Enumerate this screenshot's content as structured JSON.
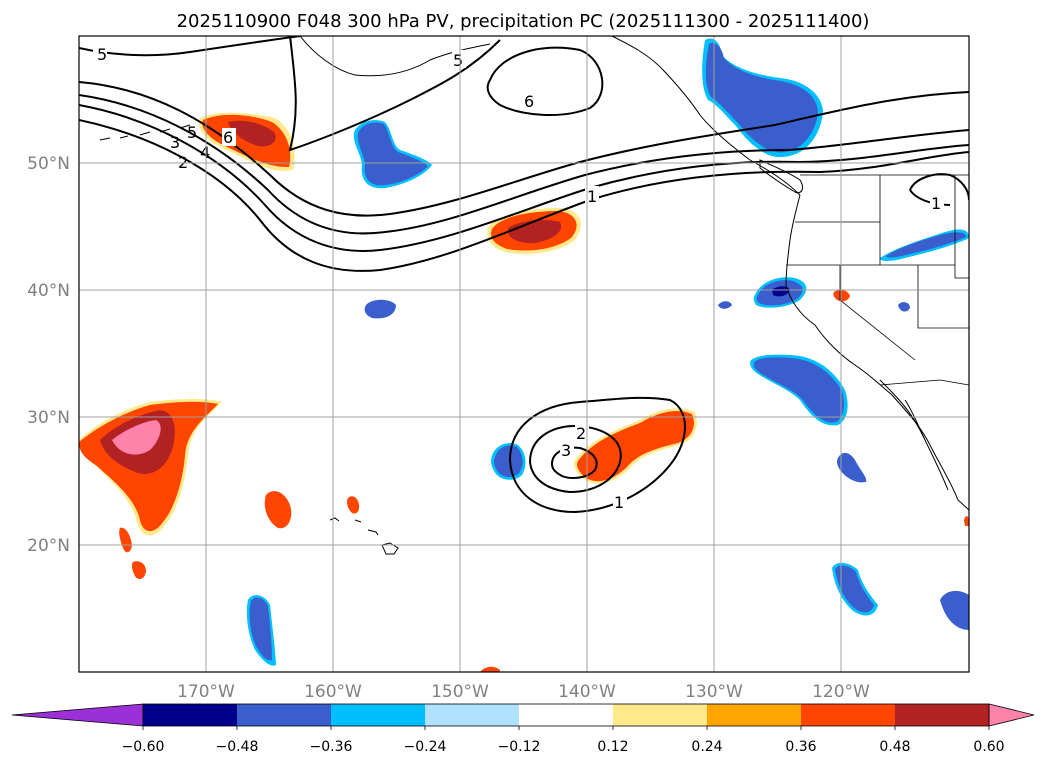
{
  "title": "2025110900 F048 300 hPa PV, precipitation PC (2025111300 - 2025111400)",
  "colors": {
    "ocean": "#ffffff",
    "grid": "#a0a0a0",
    "coast": "#000000",
    "contour": "#000000",
    "labels": "#808080"
  },
  "lat_labels": [
    "50°N",
    "40°N",
    "30°N",
    "20°N"
  ],
  "lon_labels": [
    "170°W",
    "160°W",
    "150°W",
    "140°W",
    "130°W",
    "120°W"
  ],
  "pv_contour_labels": [
    "5",
    "6",
    "5",
    "3",
    "4",
    "2",
    "5",
    "6",
    "1",
    "1",
    "2",
    "3",
    "1"
  ],
  "colorbar": {
    "ticks": [
      "−0.60",
      "−0.48",
      "−0.36",
      "−0.24",
      "−0.12",
      "0.12",
      "0.24",
      "0.36",
      "0.48",
      "0.60"
    ],
    "colors": [
      "#9b30d6",
      "#00008b",
      "#3a5fcd",
      "#00bfff",
      "#b0e2ff",
      "#ffffff",
      "#ffe98a",
      "#ffa500",
      "#ff4500",
      "#b22222",
      "#ff82ab"
    ]
  },
  "chart_data": {
    "type": "map",
    "title": "2025110900 F048 300 hPa PV, precipitation PC (2025111300 - 2025111400)",
    "extent": {
      "lon": [
        -180,
        -110
      ],
      "lat": [
        10,
        60
      ]
    },
    "grid": true,
    "colorbar_levels": [
      -0.6,
      -0.48,
      -0.36,
      -0.24,
      -0.12,
      0.12,
      0.24,
      0.36,
      0.48,
      0.6
    ]
  }
}
